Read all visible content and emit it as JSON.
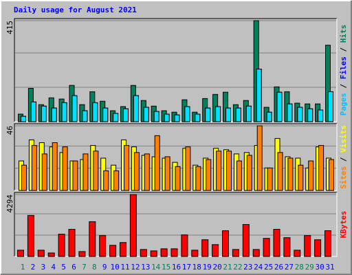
{
  "chart_data": {
    "type": "bar",
    "title": "Daily usage for August 2021",
    "series_label_separator": " / ",
    "categories": [
      "1",
      "2",
      "3",
      "4",
      "5",
      "6",
      "7",
      "8",
      "9",
      "10",
      "11",
      "12",
      "13",
      "14",
      "15",
      "16",
      "17",
      "18",
      "19",
      "20",
      "21",
      "22",
      "23",
      "24",
      "25",
      "26",
      "27",
      "28",
      "29",
      "30",
      "31"
    ],
    "x_label_colors": [
      "#00805c",
      "#0000ff",
      "#0000ff",
      "#0000ff",
      "#0000ff",
      "#0000ff",
      "#00805c",
      "#00805c",
      "#0000ff",
      "#0000ff",
      "#0000ff",
      "#0000ff",
      "#0000ff",
      "#00805c",
      "#00805c",
      "#0000ff",
      "#0000ff",
      "#0000ff",
      "#0000ff",
      "#0000ff",
      "#00805c",
      "#00805c",
      "#0000ff",
      "#0000ff",
      "#0000ff",
      "#0000ff",
      "#0000ff",
      "#00805c",
      "#00805c",
      "#0000ff",
      "#0000ff"
    ],
    "panels": [
      {
        "ylim": [
          0,
          415
        ],
        "yticks": [
          415
        ],
        "series": [
          {
            "name": "Hits",
            "color": "#00805c",
            "label_color": "#00805c",
            "values": [
              31,
              137,
              70,
              98,
              93,
              149,
              70,
              123,
              84,
              45,
              62,
              149,
              87,
              64,
              45,
              39,
              90,
              39,
              95,
              112,
              121,
              70,
              87,
              415,
              59,
              143,
              123,
              76,
              73,
              73,
              314
            ]
          },
          {
            "name": "Files",
            "color": "#0000ff",
            "label_color": "#0000ff",
            "values": [
              22,
              81,
              64,
              56,
              78,
              107,
              45,
              78,
              56,
              34,
              53,
              107,
              59,
              42,
              31,
              28,
              62,
              31,
              56,
              62,
              56,
              56,
              64,
              216,
              39,
              121,
              73,
              59,
              53,
              48,
              123
            ]
          },
          {
            "name": "Pages",
            "color": "#00e0ff",
            "label_color": "#00c0ff",
            "values": [
              22,
              81,
              64,
              56,
              78,
              107,
              45,
              78,
              56,
              34,
              53,
              107,
              59,
              42,
              31,
              28,
              62,
              31,
              56,
              62,
              56,
              56,
              64,
              216,
              39,
              121,
              73,
              59,
              53,
              48,
              123
            ]
          }
        ]
      },
      {
        "ylim": [
          0,
          46
        ],
        "yticks": [
          46
        ],
        "series": [
          {
            "name": "Visits",
            "color": "#ffff00",
            "label_color": "#ffff00",
            "values": [
              21,
              36,
              34,
              31,
              27,
              21,
              22,
              32,
              23,
              18,
              36,
              31,
              25,
              24,
              23,
              20,
              30,
              18,
              23,
              30,
              29,
              26,
              27,
              32,
              16,
              37,
              24,
              23,
              16,
              31,
              23
            ]
          },
          {
            "name": "Sites",
            "color": "#ff8000",
            "label_color": "#ff8000",
            "values": [
              18,
              32,
              26,
              34,
              31,
              21,
              26,
              28,
              14,
              14,
              32,
              27,
              26,
              39,
              24,
              17,
              31,
              17,
              22,
              28,
              28,
              21,
              25,
              46,
              16,
              27,
              23,
              18,
              21,
              32,
              22
            ]
          }
        ]
      },
      {
        "ylim": [
          0,
          4294
        ],
        "yticks": [
          4294
        ],
        "series": [
          {
            "name": "KBytes",
            "color": "#ff0000",
            "label_color": "#ff0000",
            "values": [
              434,
              2846,
              434,
              241,
              1544,
              1882,
              338,
              2412,
              1447,
              772,
              965,
              4294,
              482,
              386,
              531,
              531,
              1496,
              434,
              1158,
              820,
              1785,
              482,
              2219,
              482,
              1254,
              1882,
              1302,
              434,
              1447,
              1158,
              1785
            ]
          }
        ]
      }
    ]
  }
}
